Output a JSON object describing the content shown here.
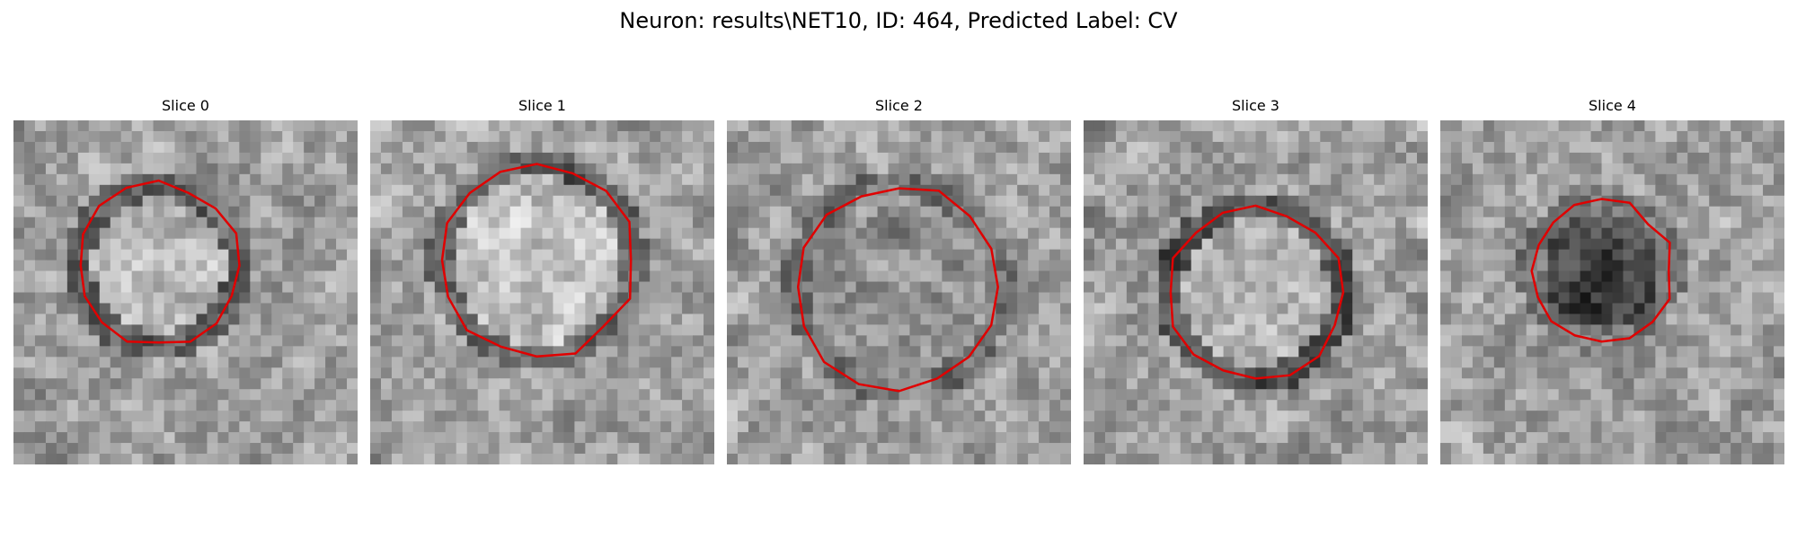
{
  "figure": {
    "title": "Neuron: results\\NET10, ID: 464, Predicted Label: CV"
  },
  "panels": [
    {
      "label": "Slice 0",
      "seed": 11,
      "contour_color": "#e00000",
      "icon": "microscopy-slice"
    },
    {
      "label": "Slice 1",
      "seed": 23,
      "contour_color": "#e00000",
      "icon": "microscopy-slice"
    },
    {
      "label": "Slice 2",
      "seed": 37,
      "contour_color": "#e00000",
      "icon": "microscopy-slice"
    },
    {
      "label": "Slice 3",
      "seed": 41,
      "contour_color": "#e00000",
      "icon": "microscopy-slice"
    },
    {
      "label": "Slice 4",
      "seed": 59,
      "contour_color": "#e00000",
      "icon": "microscopy-slice"
    }
  ]
}
